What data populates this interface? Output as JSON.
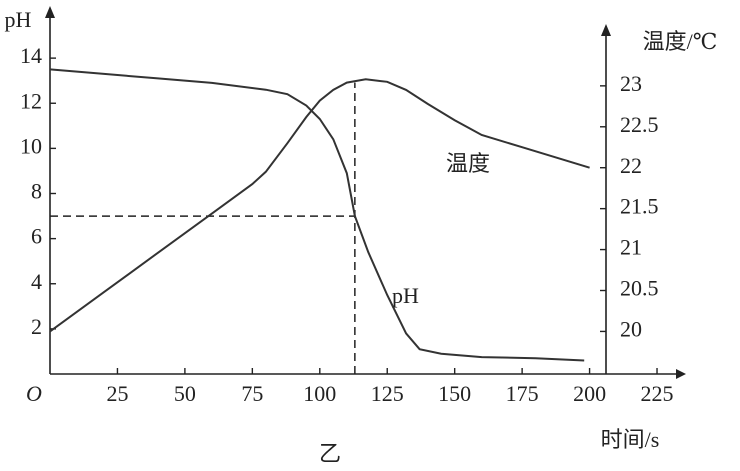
{
  "chart_data": {
    "type": "line",
    "ylabel": "pH",
    "y2label": "温度/℃",
    "xlabel": "时间/s",
    "origin_label": "O",
    "caption": "乙",
    "xlim": [
      0,
      235
    ],
    "xticks": [
      25,
      50,
      75,
      100,
      125,
      150,
      175,
      200,
      225
    ],
    "ylim": [
      0,
      16
    ],
    "yticks": [
      2,
      4,
      6,
      8,
      10,
      12,
      14
    ],
    "y2lim": [
      19.48,
      23.89
    ],
    "y2ticks": [
      20,
      20.5,
      21,
      21.5,
      22,
      22.5,
      23
    ],
    "guides": {
      "x": 113,
      "y": 7
    },
    "series": [
      {
        "name": "pH",
        "color": "#333333",
        "axis": "y",
        "x": [
          0,
          20,
          40,
          60,
          80,
          88,
          95,
          100,
          105,
          110,
          113,
          118,
          125,
          132,
          137,
          145,
          160,
          180,
          198
        ],
        "values": [
          13.5,
          13.3,
          13.1,
          12.9,
          12.6,
          12.4,
          11.9,
          11.3,
          10.4,
          8.9,
          7,
          5.4,
          3.5,
          1.8,
          1.1,
          0.9,
          0.75,
          0.7,
          0.6
        ]
      },
      {
        "name": "温度",
        "color": "#333333",
        "axis": "y2",
        "x": [
          0,
          20,
          40,
          60,
          75,
          80,
          88,
          95,
          100,
          105,
          110,
          117,
          125,
          132,
          140,
          150,
          160,
          175,
          200
        ],
        "values": [
          20.0,
          20.48,
          20.96,
          21.44,
          21.8,
          21.95,
          22.3,
          22.62,
          22.82,
          22.95,
          23.04,
          23.08,
          23.05,
          22.95,
          22.78,
          22.58,
          22.4,
          22.25,
          22.0
        ]
      }
    ]
  }
}
